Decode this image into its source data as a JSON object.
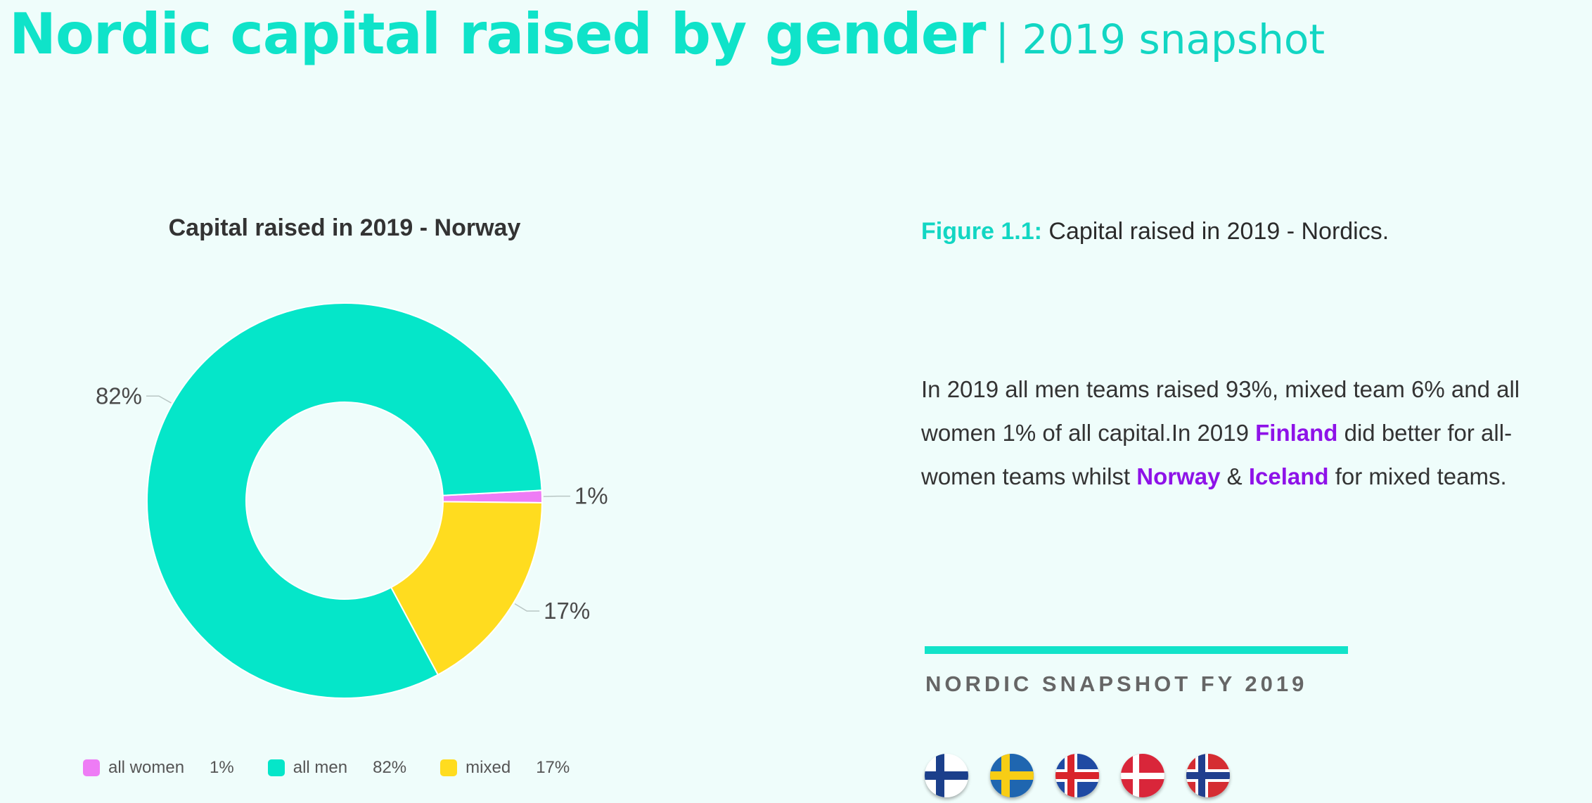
{
  "page": {
    "title": "Nordic capital raised by gender",
    "subtitle": "| 2019 snapshot"
  },
  "chart_data": {
    "type": "pie",
    "variant": "donut",
    "title": "Capital raised in 2019 - Norway",
    "slices": [
      {
        "name": "all women",
        "value": 1,
        "label": "1%",
        "color": "#ee7cf5"
      },
      {
        "name": "mixed",
        "value": 17,
        "label": "17%",
        "color": "#ffdc1f"
      },
      {
        "name": "all men",
        "value": 82,
        "label": "82%",
        "color": "#05e6c9"
      }
    ],
    "legend": [
      {
        "name": "all women",
        "value": "1%",
        "color": "#ee7cf5"
      },
      {
        "name": "all men",
        "value": "82%",
        "color": "#05e6c9"
      },
      {
        "name": "mixed",
        "value": "17%",
        "color": "#ffdc1f"
      }
    ],
    "legend_position": "bottom"
  },
  "figure": {
    "label": "Figure 1.1:",
    "caption": " Capital raised in 2019 - Nordics."
  },
  "paragraph": {
    "t1": "In 2019 all men teams raised 93%, mixed team 6% and all women 1% of all capital.In 2019 ",
    "finland": "Finland",
    "t2": " did better for all-women teams whilst ",
    "norway": "Norway",
    "t3": " & ",
    "iceland": "Iceland",
    "t4": " for mixed teams."
  },
  "snapshot": {
    "heading": "NORDIC SNAPSHOT FY 2019",
    "flags": [
      "finland-flag",
      "sweden-flag",
      "iceland-flag",
      "denmark-flag",
      "norway-flag"
    ]
  },
  "colors": {
    "accent": "#12e3c9",
    "highlight": "#8e12e8",
    "background": "#effdfb"
  }
}
